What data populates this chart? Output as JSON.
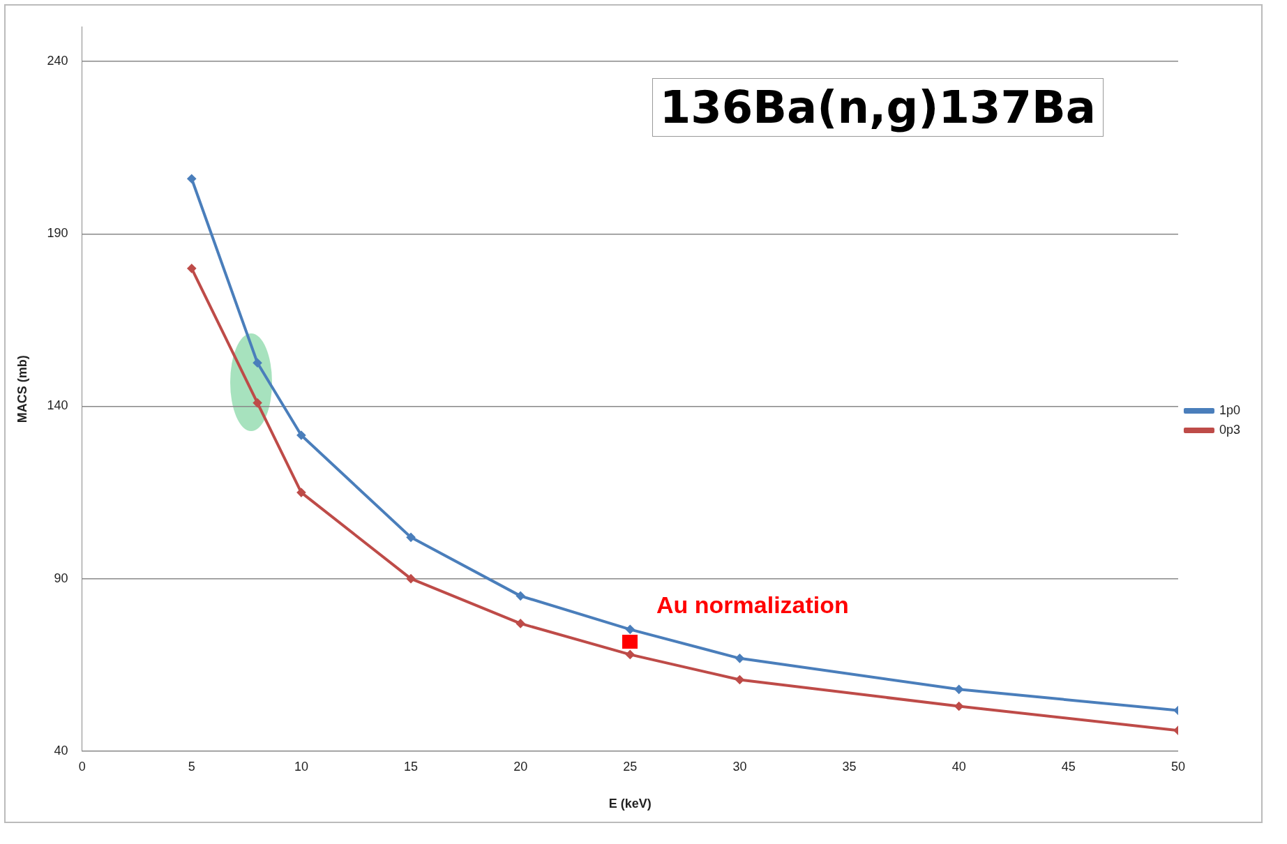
{
  "chart_data": {
    "type": "line",
    "title": "136Ba(n,g)137Ba",
    "xlabel": "E (keV)",
    "ylabel": "MACS (mb)",
    "x": [
      5,
      8,
      10,
      15,
      20,
      25,
      30,
      40,
      50
    ],
    "series": [
      {
        "name": "1p0",
        "color": "#4a7ebb",
        "values": [
          206,
          152.6,
          131.6,
          102,
          85,
          75.3,
          66.9,
          57.9,
          51.8
        ]
      },
      {
        "name": "0p3",
        "color": "#be4b48",
        "values": [
          180,
          141,
          115,
          90,
          77,
          68,
          60.7,
          53,
          46
        ]
      }
    ],
    "xlim": [
      0,
      50
    ],
    "xticks": [
      0,
      5,
      10,
      15,
      20,
      25,
      30,
      35,
      40,
      45,
      50
    ],
    "ylim": [
      40,
      250
    ],
    "yticks": [
      40,
      90,
      140,
      190,
      240
    ],
    "grid": "y",
    "legend": "right",
    "marker": "diamond",
    "line_style": "solid",
    "annotations": [
      "Au normalization"
    ]
  }
}
